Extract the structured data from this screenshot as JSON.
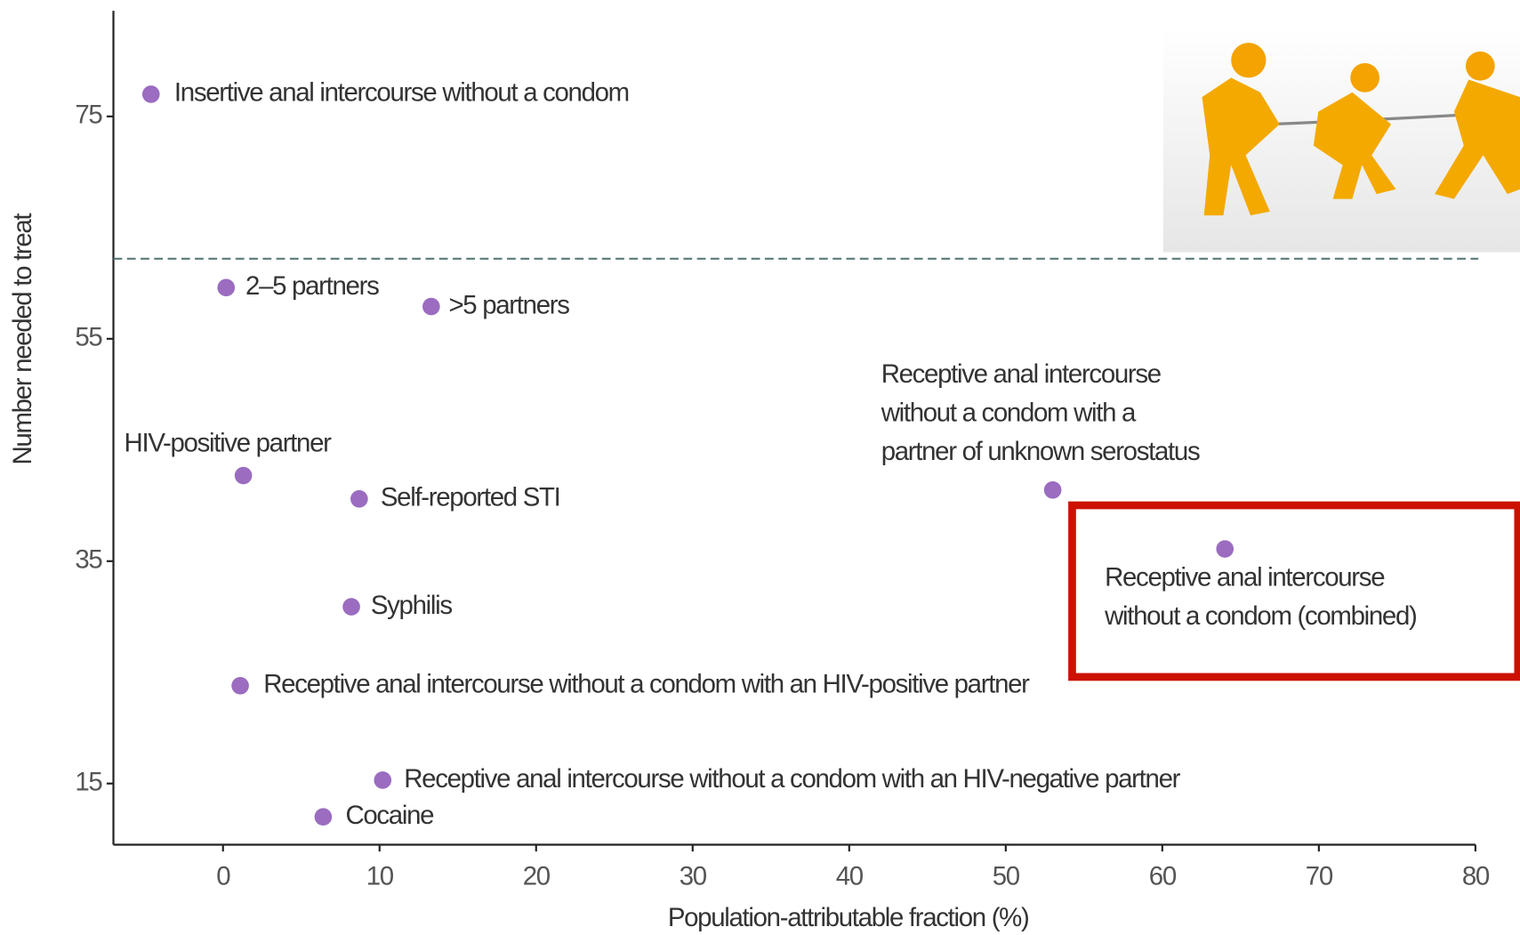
{
  "chart_data": {
    "type": "scatter",
    "x_label": "Population-attributable fraction (%)",
    "y_label": "Number needed to treat",
    "xlim": [
      -7,
      80
    ],
    "ylim": [
      9.5,
      84.5
    ],
    "xticks": [
      0,
      10,
      20,
      30,
      40,
      50,
      60,
      70,
      80
    ],
    "yticks": [
      15,
      35,
      55,
      75
    ],
    "color": "#9b6cc0",
    "reference_line": 62.2,
    "labels": [
      [
        "Insertive anal intercourse without a condom"
      ],
      [
        "2–5 partners"
      ],
      [
        ">5 partners"
      ],
      [
        "HIV-positive partner"
      ],
      [
        "Self-reported STI"
      ],
      [
        "Receptive anal intercourse",
        "without a condom with a",
        "partner of unknown serostatus"
      ],
      [
        "Receptive anal intercourse",
        "without a condom (combined)"
      ],
      [
        "Syphilis"
      ],
      [
        "Receptive anal intercourse without a condom with an HIV-positive partner"
      ],
      [
        "Receptive anal intercourse without a condom with an HIV-negative partner"
      ],
      [
        "Cocaine"
      ]
    ],
    "x": [
      -4.6,
      0.2,
      13.3,
      1.3,
      8.7,
      53.0,
      64.0,
      8.2,
      1.1,
      10.2,
      6.4
    ],
    "y": [
      77.0,
      59.6,
      57.9,
      42.7,
      40.6,
      41.4,
      36.1,
      30.9,
      23.8,
      15.3,
      12.0
    ]
  }
}
